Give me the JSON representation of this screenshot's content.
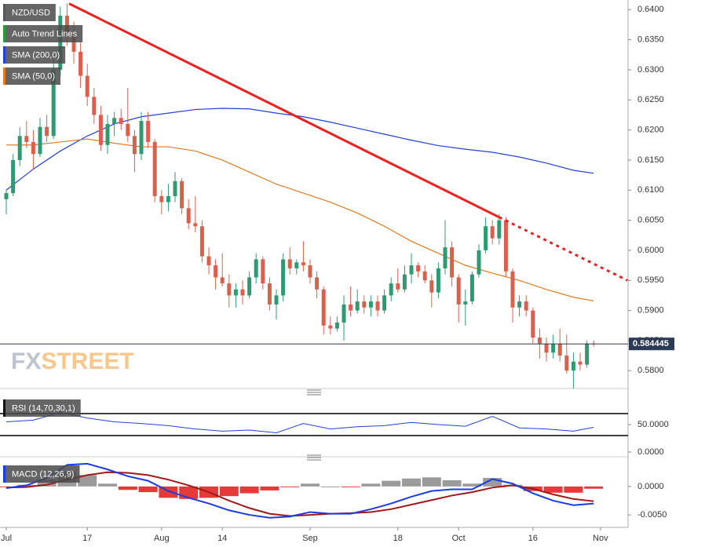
{
  "chart_data": {
    "type": "candlestick",
    "up_color": "#2f9a72",
    "down_color": "#d9604c",
    "ylim": [
      0.5773,
      0.6416
    ],
    "yticks": [
      {
        "value": 0.64,
        "label": "0.6400"
      },
      {
        "value": 0.635,
        "label": "0.6350"
      },
      {
        "value": 0.63,
        "label": "0.6300"
      },
      {
        "value": 0.625,
        "label": "0.6250"
      },
      {
        "value": 0.62,
        "label": "0.6200"
      },
      {
        "value": 0.615,
        "label": "0.6150"
      },
      {
        "value": 0.61,
        "label": "0.6100"
      },
      {
        "value": 0.605,
        "label": "0.6050"
      },
      {
        "value": 0.6,
        "label": "0.6000"
      },
      {
        "value": 0.595,
        "label": "0.5950"
      },
      {
        "value": 0.59,
        "label": "0.5900"
      },
      {
        "value": 0.585,
        "label": "0.5850"
      },
      {
        "value": 0.58,
        "label": "0.5800"
      }
    ],
    "xticks": [
      {
        "value": 0,
        "label": "Jul"
      },
      {
        "value": 12,
        "label": "17"
      },
      {
        "value": 23,
        "label": "Aug"
      },
      {
        "value": 32,
        "label": "14"
      },
      {
        "value": 45,
        "label": "Sep"
      },
      {
        "value": 58,
        "label": "18"
      },
      {
        "value": 67,
        "label": "Oct"
      },
      {
        "value": 78,
        "label": "16"
      },
      {
        "value": 88,
        "label": "Nov"
      }
    ],
    "current_price": 0.584445,
    "watermark": [
      "FX",
      "STREET"
    ],
    "series": [
      {
        "name": "NZD/USD",
        "ohlc": [
          [
            0.6085,
            0.61,
            0.606,
            0.6095
          ],
          [
            0.6095,
            0.616,
            0.609,
            0.615
          ],
          [
            0.615,
            0.6205,
            0.614,
            0.619
          ],
          [
            0.619,
            0.6215,
            0.617,
            0.618
          ],
          [
            0.618,
            0.62,
            0.6135,
            0.616
          ],
          [
            0.616,
            0.622,
            0.6155,
            0.6205
          ],
          [
            0.6205,
            0.6225,
            0.618,
            0.619
          ],
          [
            0.619,
            0.632,
            0.6185,
            0.63
          ],
          [
            0.63,
            0.6405,
            0.629,
            0.639
          ],
          [
            0.639,
            0.641,
            0.634,
            0.636
          ],
          [
            0.636,
            0.638,
            0.631,
            0.633
          ],
          [
            0.633,
            0.6345,
            0.627,
            0.629
          ],
          [
            0.629,
            0.631,
            0.624,
            0.6255
          ],
          [
            0.6255,
            0.627,
            0.621,
            0.6225
          ],
          [
            0.6225,
            0.624,
            0.6165,
            0.6175
          ],
          [
            0.6175,
            0.6225,
            0.616,
            0.621
          ],
          [
            0.621,
            0.623,
            0.619,
            0.622
          ],
          [
            0.622,
            0.6235,
            0.62,
            0.621
          ],
          [
            0.621,
            0.627,
            0.618,
            0.619
          ],
          [
            0.619,
            0.62,
            0.613,
            0.616
          ],
          [
            0.616,
            0.623,
            0.615,
            0.6215
          ],
          [
            0.6215,
            0.623,
            0.617,
            0.618
          ],
          [
            0.618,
            0.6185,
            0.608,
            0.609
          ],
          [
            0.609,
            0.61,
            0.606,
            0.608
          ],
          [
            0.608,
            0.611,
            0.6065,
            0.609
          ],
          [
            0.609,
            0.613,
            0.608,
            0.6115
          ],
          [
            0.6115,
            0.612,
            0.606,
            0.607
          ],
          [
            0.607,
            0.6085,
            0.6035,
            0.6045
          ],
          [
            0.6045,
            0.609,
            0.603,
            0.604
          ],
          [
            0.604,
            0.605,
            0.598,
            0.599
          ],
          [
            0.599,
            0.6005,
            0.596,
            0.5975
          ],
          [
            0.5975,
            0.5985,
            0.5935,
            0.5955
          ],
          [
            0.5955,
            0.5995,
            0.594,
            0.5945
          ],
          [
            0.5945,
            0.596,
            0.5905,
            0.5925
          ],
          [
            0.5925,
            0.5945,
            0.5905,
            0.5935
          ],
          [
            0.5935,
            0.595,
            0.591,
            0.5925
          ],
          [
            0.5925,
            0.5965,
            0.592,
            0.5955
          ],
          [
            0.5955,
            0.5995,
            0.5945,
            0.5985
          ],
          [
            0.5985,
            0.599,
            0.5935,
            0.5945
          ],
          [
            0.5945,
            0.5955,
            0.59,
            0.591
          ],
          [
            0.591,
            0.5935,
            0.5885,
            0.5925
          ],
          [
            0.5925,
            0.5995,
            0.5915,
            0.5985
          ],
          [
            0.5985,
            0.6005,
            0.596,
            0.597
          ],
          [
            0.597,
            0.5985,
            0.596,
            0.598
          ],
          [
            0.598,
            0.6015,
            0.5965,
            0.5975
          ],
          [
            0.5975,
            0.5985,
            0.5945,
            0.5955
          ],
          [
            0.5955,
            0.5965,
            0.592,
            0.5935
          ],
          [
            0.5935,
            0.594,
            0.586,
            0.5875
          ],
          [
            0.5875,
            0.589,
            0.586,
            0.587
          ],
          [
            0.587,
            0.589,
            0.5865,
            0.588
          ],
          [
            0.588,
            0.5925,
            0.585,
            0.591
          ],
          [
            0.591,
            0.594,
            0.589,
            0.59
          ],
          [
            0.59,
            0.5935,
            0.5895,
            0.5915
          ],
          [
            0.5915,
            0.5925,
            0.5895,
            0.5905
          ],
          [
            0.5905,
            0.5925,
            0.589,
            0.5915
          ],
          [
            0.5915,
            0.5925,
            0.589,
            0.59
          ],
          [
            0.59,
            0.5935,
            0.5895,
            0.5925
          ],
          [
            0.5925,
            0.5955,
            0.5915,
            0.5945
          ],
          [
            0.5945,
            0.597,
            0.593,
            0.5935
          ],
          [
            0.5935,
            0.5975,
            0.593,
            0.596
          ],
          [
            0.596,
            0.5995,
            0.5945,
            0.5975
          ],
          [
            0.5975,
            0.598,
            0.5955,
            0.5965
          ],
          [
            0.5965,
            0.5975,
            0.5945,
            0.595
          ],
          [
            0.595,
            0.596,
            0.5905,
            0.593
          ],
          [
            0.593,
            0.598,
            0.592,
            0.597
          ],
          [
            0.597,
            0.605,
            0.596,
            0.6005
          ],
          [
            0.6005,
            0.6015,
            0.594,
            0.5955
          ],
          [
            0.5955,
            0.596,
            0.588,
            0.591
          ],
          [
            0.591,
            0.5935,
            0.5875,
            0.5915
          ],
          [
            0.5915,
            0.5965,
            0.591,
            0.596
          ],
          [
            0.596,
            0.601,
            0.5955,
            0.6
          ],
          [
            0.6,
            0.6055,
            0.5995,
            0.604
          ],
          [
            0.604,
            0.605,
            0.601,
            0.602
          ],
          [
            0.602,
            0.606,
            0.601,
            0.605
          ],
          [
            0.605,
            0.6055,
            0.5955,
            0.5965
          ],
          [
            0.5965,
            0.597,
            0.588,
            0.5905
          ],
          [
            0.5905,
            0.5925,
            0.589,
            0.5915
          ],
          [
            0.5915,
            0.5925,
            0.589,
            0.59
          ],
          [
            0.59,
            0.5905,
            0.5845,
            0.5855
          ],
          [
            0.5855,
            0.587,
            0.582,
            0.5845
          ],
          [
            0.5845,
            0.5855,
            0.5815,
            0.583
          ],
          [
            0.583,
            0.586,
            0.582,
            0.5845
          ],
          [
            0.5845,
            0.587,
            0.5815,
            0.5825
          ],
          [
            0.5825,
            0.586,
            0.5795,
            0.58
          ],
          [
            0.58,
            0.583,
            0.577,
            0.5815
          ],
          [
            0.5815,
            0.583,
            0.58,
            0.581
          ],
          [
            0.581,
            0.585,
            0.5805,
            0.5845
          ],
          [
            0.5845,
            0.585,
            0.584,
            0.5844
          ]
        ]
      },
      {
        "name": "SMA (200,0)",
        "color": "#2340d8",
        "x": [
          0,
          4,
          8,
          12,
          16,
          20,
          24,
          28,
          32,
          36,
          40,
          44,
          48,
          52,
          56,
          60,
          64,
          68,
          72,
          76,
          80,
          84,
          87
        ],
        "values": [
          0.61,
          0.6135,
          0.6165,
          0.619,
          0.621,
          0.6222,
          0.6228,
          0.6234,
          0.6236,
          0.6235,
          0.6228,
          0.6222,
          0.6213,
          0.6203,
          0.6193,
          0.6183,
          0.6174,
          0.6168,
          0.6163,
          0.6155,
          0.6145,
          0.6133,
          0.6128
        ]
      },
      {
        "name": "SMA (50,0)",
        "color": "#e07b22",
        "x": [
          0,
          4,
          8,
          12,
          16,
          20,
          24,
          28,
          32,
          36,
          40,
          44,
          48,
          52,
          56,
          60,
          64,
          68,
          72,
          76,
          80,
          84,
          87
        ],
        "values": [
          0.6175,
          0.6175,
          0.618,
          0.6185,
          0.6178,
          0.6172,
          0.6172,
          0.6165,
          0.615,
          0.613,
          0.611,
          0.6095,
          0.608,
          0.6062,
          0.604,
          0.6015,
          0.5995,
          0.5975,
          0.5962,
          0.595,
          0.5935,
          0.5922,
          0.5916
        ]
      }
    ],
    "trend_line": {
      "name": "Auto Trend Lines",
      "color": "#ee2020",
      "x": [
        9.3,
        73,
        92
      ],
      "values": [
        0.641,
        0.6055,
        0.595
      ]
    },
    "rsi": {
      "name": "RSI (14,70,30,1)",
      "color": "#2340d8",
      "levels": [
        70,
        30
      ],
      "ylim": [
        -5.7,
        101.4
      ],
      "yticks": [
        {
          "value": 50,
          "label": "50.0000"
        },
        {
          "value": 0,
          "label": "0.0000"
        }
      ],
      "x": [
        0,
        4,
        8,
        12,
        16,
        20,
        24,
        28,
        32,
        36,
        40,
        44,
        48,
        52,
        56,
        60,
        64,
        68,
        72,
        76,
        80,
        84,
        87
      ],
      "values": [
        55,
        58,
        72,
        62,
        55,
        52,
        48,
        42,
        38,
        40,
        35,
        52,
        42,
        46,
        48,
        54,
        50,
        47,
        65,
        44,
        42,
        38,
        45
      ]
    },
    "macd": {
      "name": "MACD (12,26,9)",
      "macd_color": "#1a3de0",
      "signal_color": "#a01818",
      "hist_up_color": "#8a8a8a",
      "hist_down_color": "#e01818",
      "ylim": [
        -0.0072,
        0.0044
      ],
      "yticks": [
        {
          "value": 0,
          "label": "0.0000"
        },
        {
          "value": -0.005,
          "label": "-0.0050"
        }
      ],
      "x": [
        0,
        3,
        6,
        9,
        12,
        15,
        18,
        21,
        24,
        27,
        30,
        33,
        36,
        39,
        42,
        45,
        48,
        51,
        54,
        57,
        60,
        63,
        66,
        69,
        72,
        75,
        78,
        81,
        84,
        87
      ],
      "macd": [
        -0.0003,
        0.0002,
        0.0015,
        0.0038,
        0.004,
        0.003,
        0.0018,
        0.001,
        -0.0008,
        -0.002,
        -0.003,
        -0.0042,
        -0.005,
        -0.0055,
        -0.0053,
        -0.0045,
        -0.0048,
        -0.0048,
        -0.004,
        -0.003,
        -0.0018,
        -0.0008,
        -0.0005,
        -0.0005,
        0.0013,
        0.0005,
        -0.0012,
        -0.0025,
        -0.0033,
        -0.003
      ],
      "signal": [
        -0.0002,
        -0.0001,
        0.0003,
        0.0012,
        0.002,
        0.0025,
        0.0024,
        0.002,
        0.0012,
        0.0002,
        -0.001,
        -0.0025,
        -0.0038,
        -0.0048,
        -0.0052,
        -0.005,
        -0.0048,
        -0.0047,
        -0.0045,
        -0.004,
        -0.0032,
        -0.0024,
        -0.0016,
        -0.001,
        -0.0002,
        0.0002,
        -0.0004,
        -0.0014,
        -0.0022,
        -0.0026
      ],
      "histogram": [
        -0.0001,
        0.0003,
        0.0012,
        0.0026,
        0.002,
        0.0005,
        -0.0006,
        -0.001,
        -0.002,
        -0.0022,
        -0.002,
        -0.0017,
        -0.0012,
        -0.0007,
        -0.0001,
        0.0005,
        0.0,
        -0.0001,
        0.0005,
        0.001,
        0.0014,
        0.0016,
        0.0011,
        0.0005,
        0.0015,
        0.0003,
        -0.0008,
        -0.0011,
        -0.0011,
        -0.0004
      ]
    }
  }
}
